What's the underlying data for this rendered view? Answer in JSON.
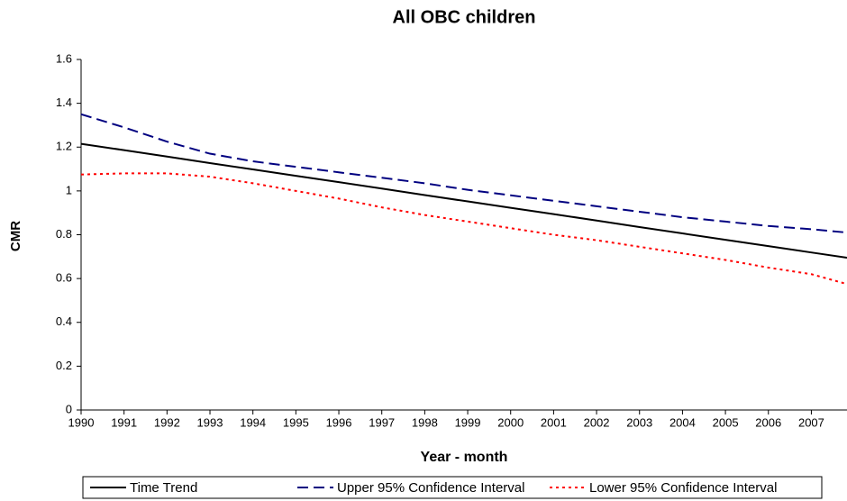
{
  "chart_data": {
    "type": "line",
    "title": "All OBC children",
    "x_label": "Year - month",
    "y_label": "CMR",
    "x": [
      1990,
      1991,
      1992,
      1993,
      1994,
      1995,
      1996,
      1997,
      1998,
      1999,
      2000,
      2001,
      2002,
      2003,
      2004,
      2005,
      2006,
      2007,
      2007.83
    ],
    "xlim": [
      1990,
      2007.83
    ],
    "xticks": [
      1990,
      1991,
      1992,
      1993,
      1994,
      1995,
      1996,
      1997,
      1998,
      1999,
      2000,
      2001,
      2002,
      2003,
      2004,
      2005,
      2006,
      2007
    ],
    "ylim": [
      0,
      1.6
    ],
    "yticks": [
      0,
      0.2,
      0.4,
      0.6,
      0.8,
      1,
      1.2,
      1.4,
      1.6
    ],
    "legend": "bottom",
    "series": [
      {
        "name": "Time Trend",
        "color": "#000000",
        "style": "solid",
        "values": [
          1.215,
          1.186,
          1.157,
          1.127,
          1.098,
          1.069,
          1.04,
          1.011,
          0.981,
          0.952,
          0.923,
          0.894,
          0.865,
          0.835,
          0.806,
          0.777,
          0.748,
          0.719,
          0.695
        ]
      },
      {
        "name": "Upper 95% Confidence Interval",
        "color": "#000080",
        "style": "dashed",
        "values": [
          1.35,
          1.29,
          1.225,
          1.17,
          1.135,
          1.11,
          1.085,
          1.06,
          1.035,
          1.005,
          0.98,
          0.955,
          0.93,
          0.905,
          0.88,
          0.86,
          0.84,
          0.825,
          0.81
        ]
      },
      {
        "name": "Lower 95% Confidence Interval",
        "color": "#ff0000",
        "style": "dotted",
        "values": [
          1.075,
          1.08,
          1.08,
          1.065,
          1.035,
          1.0,
          0.965,
          0.925,
          0.89,
          0.86,
          0.83,
          0.8,
          0.775,
          0.745,
          0.715,
          0.685,
          0.65,
          0.62,
          0.575
        ]
      }
    ]
  }
}
